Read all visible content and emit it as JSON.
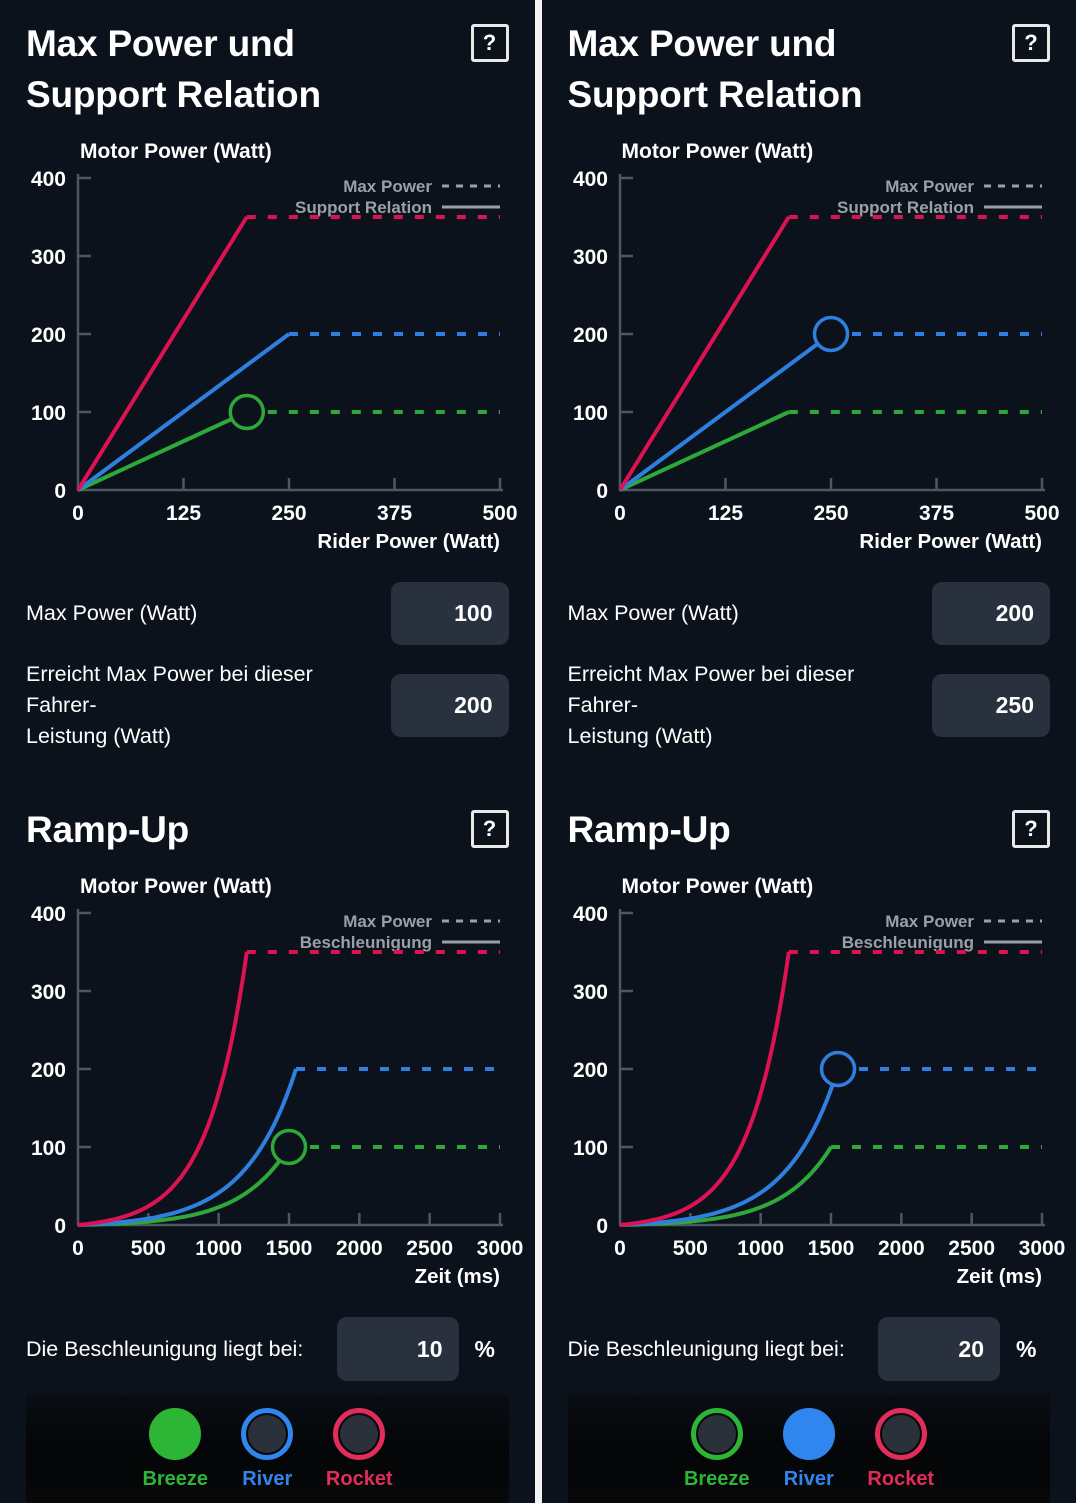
{
  "colors": {
    "panel_bg": "#0c121b",
    "footer_bg": "#05070b",
    "divider": "#f2f2f2",
    "axis": "#4e5761",
    "legend": "#99a0a8",
    "text": "#ffffff",
    "input_bg": "#29313e",
    "breeze_green": "#2fa83a",
    "river_blue": "#2e7fe0",
    "rocket_red": "#dc1350"
  },
  "chart_data": [
    {
      "type": "line",
      "title": "Max Power und Support Relation",
      "ylabel": "Motor Power (Watt)",
      "xlabel": "Rider Power (Watt)",
      "xlim": [
        0,
        500
      ],
      "ylim": [
        0,
        400
      ],
      "x_ticks": [
        0,
        125,
        250,
        375,
        500
      ],
      "y_ticks": [
        0,
        100,
        200,
        300,
        400
      ],
      "curve": "linear",
      "legend": [
        {
          "label": "Max Power",
          "style": "dashed"
        },
        {
          "label": "Support Relation",
          "style": "solid"
        }
      ],
      "series": [
        {
          "name": "Breeze",
          "color": "#2fa83a",
          "max": 100,
          "reached_at": 200
        },
        {
          "name": "River",
          "color": "#2e7fe0",
          "max": 200,
          "reached_at": 250
        },
        {
          "name": "Rocket",
          "color": "#dc1350",
          "max": 350,
          "reached_at": 200
        }
      ],
      "selected": "Breeze"
    },
    {
      "type": "line",
      "title": "Ramp-Up",
      "ylabel": "Motor Power (Watt)",
      "xlabel": "Zeit (ms)",
      "xlim": [
        0,
        3000
      ],
      "ylim": [
        0,
        400
      ],
      "x_ticks": [
        0,
        500,
        1000,
        1500,
        2000,
        2500,
        3000
      ],
      "y_ticks": [
        0,
        100,
        200,
        300,
        400
      ],
      "curve": "expo",
      "legend": [
        {
          "label": "Max Power",
          "style": "dashed"
        },
        {
          "label": "Beschleunigung",
          "style": "solid"
        }
      ],
      "series": [
        {
          "name": "Breeze",
          "color": "#2fa83a",
          "max": 100,
          "reached_at": 1500
        },
        {
          "name": "River",
          "color": "#2e7fe0",
          "max": 200,
          "reached_at": 1550
        },
        {
          "name": "Rocket",
          "color": "#dc1350",
          "max": 350,
          "reached_at": 1200
        }
      ],
      "selected": "Breeze"
    },
    {
      "type": "line",
      "title": "Max Power und Support Relation",
      "ylabel": "Motor Power (Watt)",
      "xlabel": "Rider Power (Watt)",
      "xlim": [
        0,
        500
      ],
      "ylim": [
        0,
        400
      ],
      "x_ticks": [
        0,
        125,
        250,
        375,
        500
      ],
      "y_ticks": [
        0,
        100,
        200,
        300,
        400
      ],
      "curve": "linear",
      "legend": [
        {
          "label": "Max Power",
          "style": "dashed"
        },
        {
          "label": "Support Relation",
          "style": "solid"
        }
      ],
      "series": [
        {
          "name": "Breeze",
          "color": "#2fa83a",
          "max": 100,
          "reached_at": 200
        },
        {
          "name": "River",
          "color": "#2e7fe0",
          "max": 200,
          "reached_at": 250
        },
        {
          "name": "Rocket",
          "color": "#dc1350",
          "max": 350,
          "reached_at": 200
        }
      ],
      "selected": "River"
    },
    {
      "type": "line",
      "title": "Ramp-Up",
      "ylabel": "Motor Power (Watt)",
      "xlabel": "Zeit (ms)",
      "xlim": [
        0,
        3000
      ],
      "ylim": [
        0,
        400
      ],
      "x_ticks": [
        0,
        500,
        1000,
        1500,
        2000,
        2500,
        3000
      ],
      "y_ticks": [
        0,
        100,
        200,
        300,
        400
      ],
      "curve": "expo",
      "legend": [
        {
          "label": "Max Power",
          "style": "dashed"
        },
        {
          "label": "Beschleunigung",
          "style": "solid"
        }
      ],
      "series": [
        {
          "name": "Breeze",
          "color": "#2fa83a",
          "max": 100,
          "reached_at": 1500
        },
        {
          "name": "River",
          "color": "#2e7fe0",
          "max": 200,
          "reached_at": 1550
        },
        {
          "name": "Rocket",
          "color": "#dc1350",
          "max": 350,
          "reached_at": 1200
        }
      ],
      "selected": "River"
    }
  ],
  "panels": [
    {
      "power_section": {
        "title_lines": [
          "Max Power und",
          "Support Relation"
        ],
        "help_label": "?",
        "fields": [
          {
            "label_lines": [
              "Max Power (Watt)"
            ],
            "value": "100"
          },
          {
            "label_lines": [
              "Erreicht Max Power bei dieser Fahrer-",
              "Leistung (Watt)"
            ],
            "value": "200"
          }
        ]
      },
      "ramp_section": {
        "title": "Ramp-Up",
        "help_label": "?",
        "accel_label": "Die Beschleunigung liegt bei:",
        "accel_value": "10",
        "accel_unit": "%"
      },
      "modes": [
        {
          "label": "Breeze",
          "color": "#2db535",
          "active": true
        },
        {
          "label": "River",
          "color": "#2e86ee",
          "active": false
        },
        {
          "label": "Rocket",
          "color": "#e22c59",
          "active": false
        }
      ]
    },
    {
      "power_section": {
        "title_lines": [
          "Max Power und",
          "Support Relation"
        ],
        "help_label": "?",
        "fields": [
          {
            "label_lines": [
              "Max Power (Watt)"
            ],
            "value": "200"
          },
          {
            "label_lines": [
              "Erreicht Max Power bei dieser Fahrer-",
              "Leistung (Watt)"
            ],
            "value": "250"
          }
        ]
      },
      "ramp_section": {
        "title": "Ramp-Up",
        "help_label": "?",
        "accel_label": "Die Beschleunigung liegt bei:",
        "accel_value": "20",
        "accel_unit": "%"
      },
      "modes": [
        {
          "label": "Breeze",
          "color": "#2db535",
          "active": false
        },
        {
          "label": "River",
          "color": "#2e86ee",
          "active": true
        },
        {
          "label": "Rocket",
          "color": "#e22c59",
          "active": false
        }
      ]
    }
  ]
}
